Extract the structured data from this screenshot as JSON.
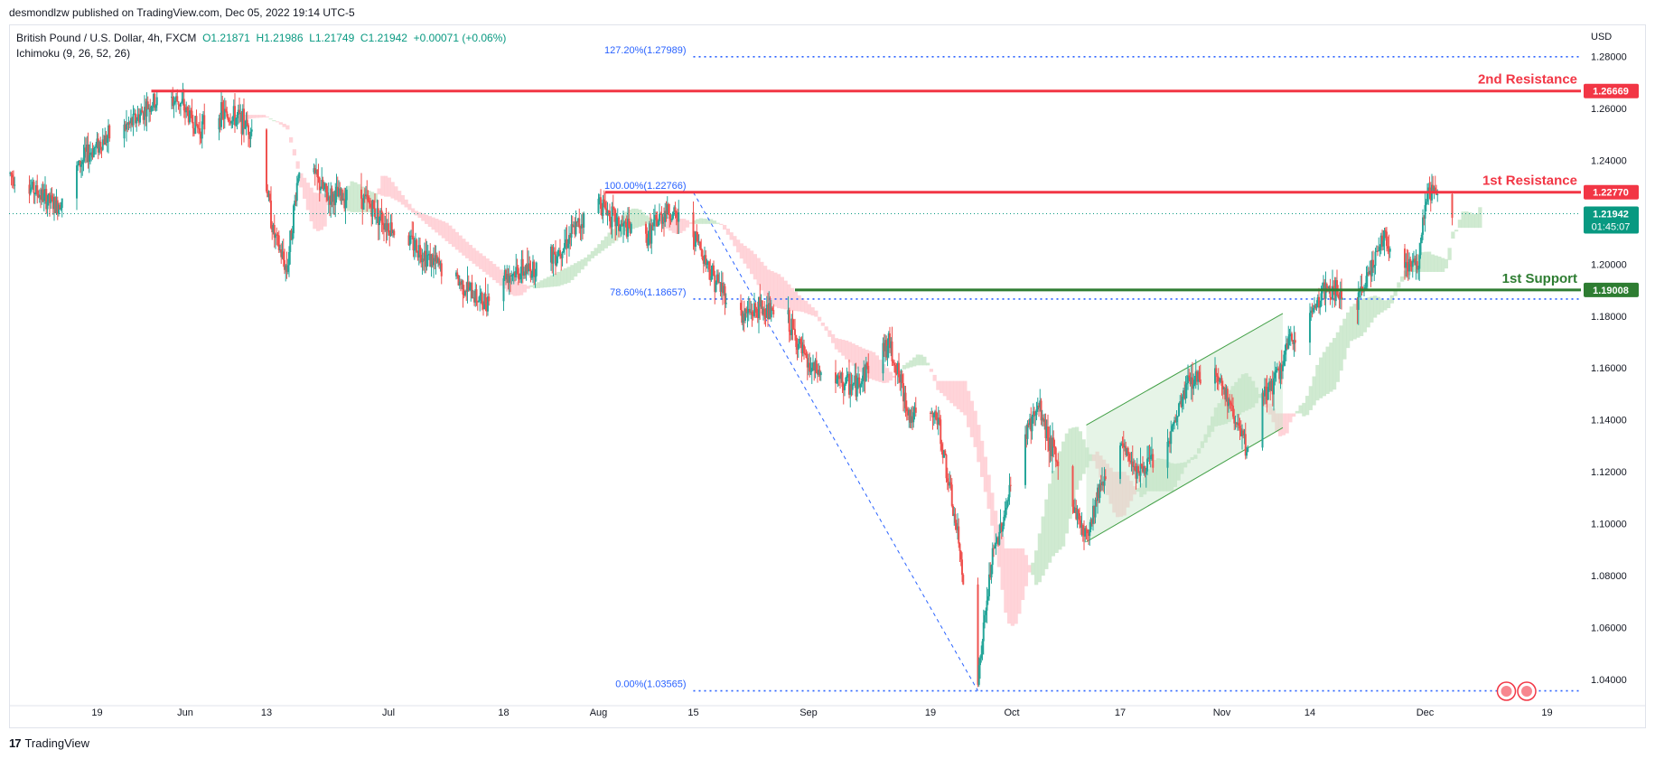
{
  "header": {
    "publisher_line": "desmondlzw published on TradingView.com, Dec 05, 2022 19:14 UTC-5"
  },
  "legend": {
    "symbol": "British Pound / U.S. Dollar, 4h, FXCM",
    "open": "O1.21871",
    "high": "H1.21986",
    "low": "L1.21749",
    "close": "C1.21942",
    "change": "+0.00071 (+0.06%)",
    "indicator": "Ichimoku (9, 26, 52, 26)"
  },
  "currency": "USD",
  "footer": {
    "logo_glyph": "17",
    "brand": "TradingView"
  },
  "colors": {
    "bull": "#26a69a",
    "bear": "#ef5350",
    "resistance": "#f23645",
    "support": "#2e7d32",
    "fib": "#2962ff",
    "fib_text": "#2962ff",
    "cloud_green": "#c8e6c9",
    "cloud_red": "#ffcdd2",
    "price_badge": "#089981"
  },
  "chart_data": {
    "type": "candlestick",
    "title": "British Pound / U.S. Dollar, 4h, FXCM",
    "indicator": "Ichimoku (9, 26, 52, 26)",
    "ylim": [
      1.032,
      1.292
    ],
    "y_ticks": [
      "1.28000",
      "1.26000",
      "1.24000",
      "1.22000",
      "1.20000",
      "1.18000",
      "1.16000",
      "1.14000",
      "1.12000",
      "1.10000",
      "1.08000",
      "1.06000",
      "1.04000"
    ],
    "y_tick_values": [
      1.28,
      1.26,
      1.24,
      1.22,
      1.2,
      1.18,
      1.16,
      1.14,
      1.12,
      1.1,
      1.08,
      1.06,
      1.04
    ],
    "x_ticks": [
      "19",
      "Jun",
      "13",
      "Jul",
      "18",
      "Aug",
      "15",
      "Sep",
      "19",
      "Oct",
      "17",
      "Nov",
      "14",
      "Dec",
      "19"
    ],
    "x_tick_dates": [
      "2022-05-19",
      "2022-06-01",
      "2022-06-13",
      "2022-07-01",
      "2022-07-18",
      "2022-08-01",
      "2022-08-15",
      "2022-09-01",
      "2022-09-19",
      "2022-10-01",
      "2022-10-17",
      "2022-11-01",
      "2022-11-14",
      "2022-12-01",
      "2022-12-19"
    ],
    "x_range": [
      "2022-05-06",
      "2022-12-24"
    ],
    "price_path": [
      [
        "2022-05-06",
        1.235
      ],
      [
        "2022-05-10",
        1.228
      ],
      [
        "2022-05-13",
        1.222
      ],
      [
        "2022-05-17",
        1.241
      ],
      [
        "2022-05-20",
        1.248
      ],
      [
        "2022-05-24",
        1.254
      ],
      [
        "2022-05-27",
        1.262
      ],
      [
        "2022-05-31",
        1.263
      ],
      [
        "2022-06-03",
        1.252
      ],
      [
        "2022-06-06",
        1.258
      ],
      [
        "2022-06-09",
        1.256
      ],
      [
        "2022-06-12",
        1.249
      ],
      [
        "2022-06-14",
        1.212
      ],
      [
        "2022-06-16",
        1.198
      ],
      [
        "2022-06-18",
        1.242
      ],
      [
        "2022-06-22",
        1.226
      ],
      [
        "2022-06-27",
        1.226
      ],
      [
        "2022-07-01",
        1.215
      ],
      [
        "2022-07-05",
        1.207
      ],
      [
        "2022-07-08",
        1.2
      ],
      [
        "2022-07-12",
        1.192
      ],
      [
        "2022-07-15",
        1.185
      ],
      [
        "2022-07-18",
        1.196
      ],
      [
        "2022-07-22",
        1.198
      ],
      [
        "2022-07-26",
        1.205
      ],
      [
        "2022-07-29",
        1.215
      ],
      [
        "2022-08-01",
        1.225
      ],
      [
        "2022-08-04",
        1.215
      ],
      [
        "2022-08-08",
        1.21
      ],
      [
        "2022-08-11",
        1.221
      ],
      [
        "2022-08-15",
        1.212
      ],
      [
        "2022-08-18",
        1.195
      ],
      [
        "2022-08-22",
        1.18
      ],
      [
        "2022-08-25",
        1.183
      ],
      [
        "2022-08-29",
        1.178
      ],
      [
        "2022-09-01",
        1.16
      ],
      [
        "2022-09-05",
        1.155
      ],
      [
        "2022-09-08",
        1.153
      ],
      [
        "2022-09-11",
        1.166
      ],
      [
        "2022-09-13",
        1.169
      ],
      [
        "2022-09-16",
        1.141
      ],
      [
        "2022-09-20",
        1.141
      ],
      [
        "2022-09-23",
        1.095
      ],
      [
        "2022-09-26",
        1.04
      ],
      [
        "2022-09-28",
        1.085
      ],
      [
        "2022-09-30",
        1.105
      ],
      [
        "2022-10-03",
        1.135
      ],
      [
        "2022-10-05",
        1.145
      ],
      [
        "2022-10-08",
        1.12
      ],
      [
        "2022-10-12",
        1.095
      ],
      [
        "2022-10-14",
        1.115
      ],
      [
        "2022-10-17",
        1.13
      ],
      [
        "2022-10-20",
        1.12
      ],
      [
        "2022-10-24",
        1.13
      ],
      [
        "2022-10-27",
        1.155
      ],
      [
        "2022-10-31",
        1.16
      ],
      [
        "2022-11-03",
        1.14
      ],
      [
        "2022-11-05",
        1.125
      ],
      [
        "2022-11-07",
        1.15
      ],
      [
        "2022-11-09",
        1.155
      ],
      [
        "2022-11-11",
        1.17
      ],
      [
        "2022-11-14",
        1.18
      ],
      [
        "2022-11-16",
        1.19
      ],
      [
        "2022-11-18",
        1.189
      ],
      [
        "2022-11-21",
        1.184
      ],
      [
        "2022-11-23",
        1.2
      ],
      [
        "2022-11-25",
        1.21
      ],
      [
        "2022-11-28",
        1.2
      ],
      [
        "2022-11-30",
        1.2
      ],
      [
        "2022-12-01",
        1.225
      ],
      [
        "2022-12-02",
        1.228
      ],
      [
        "2022-12-05",
        1.2194
      ]
    ],
    "current": {
      "price": "1.21942",
      "countdown": "01:45:07",
      "value": 1.21942
    },
    "levels": [
      {
        "name": "2nd Resistance",
        "price": "1.26669",
        "value": 1.26669,
        "from": "2022-05-27",
        "color": "#f23645"
      },
      {
        "name": "1st Resistance",
        "price": "1.22770",
        "value": 1.2277,
        "from": "2022-08-02",
        "color": "#f23645"
      },
      {
        "name": "1st Support",
        "price": "1.19008",
        "value": 1.19008,
        "from": "2022-08-30",
        "color": "#2e7d32"
      }
    ],
    "fibonacci": [
      {
        "label": "127.20%(1.27989)",
        "value": 1.27989
      },
      {
        "label": "100.00%(1.22766)",
        "value": 1.22766
      },
      {
        "label": "78.60%(1.18657)",
        "value": 1.18657
      },
      {
        "label": "0.00%(1.03565)",
        "value": 1.03565
      }
    ],
    "fib_start": "2022-08-15",
    "fib_anchor_high": [
      "2022-08-15",
      1.22766
    ],
    "fib_anchor_low": [
      "2022-09-26",
      1.03565
    ],
    "channel": {
      "lower": [
        [
          "2022-10-12",
          1.093
        ],
        [
          "2022-11-10",
          1.137
        ]
      ],
      "upper": [
        [
          "2022-10-12",
          1.138
        ],
        [
          "2022-11-10",
          1.181
        ]
      ]
    },
    "events": [
      "2022-12-05",
      "2022-12-08"
    ]
  }
}
